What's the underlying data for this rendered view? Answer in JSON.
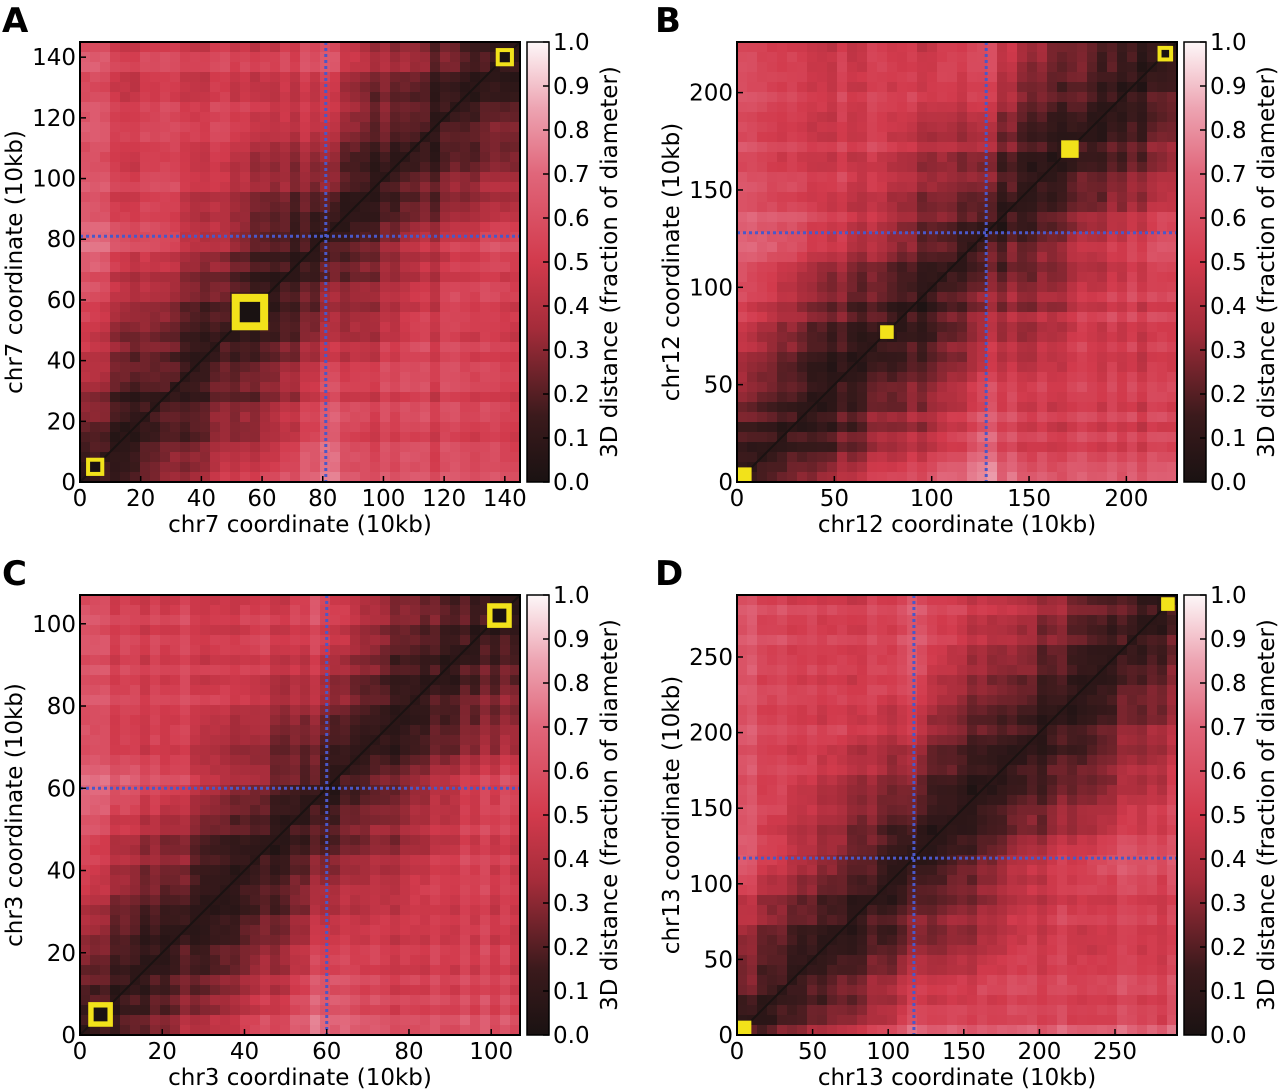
{
  "colors": {
    "low": "#1a1212",
    "mid": "#d23a4c",
    "high": "#fdf7f8",
    "crosshair": "#4a58c8",
    "marker": "#f2e21a"
  },
  "colorbar": {
    "label": "3D distance (fraction of diameter)",
    "ticks": [
      "0.0",
      "0.1",
      "0.2",
      "0.3",
      "0.4",
      "0.5",
      "0.6",
      "0.7",
      "0.8",
      "0.9",
      "1.0"
    ]
  },
  "chart_data": [
    {
      "type": "heatmap",
      "panel": "A",
      "xlabel": "chr7 coordinate (10kb)",
      "ylabel": "chr7 coordinate (10kb)",
      "xlim": [
        0,
        145
      ],
      "ylim": [
        0,
        145
      ],
      "ticks": [
        0,
        20,
        40,
        60,
        80,
        100,
        120,
        140
      ],
      "crosshair": 81,
      "markers": [
        {
          "x": 5,
          "y": 5,
          "size": 6,
          "style": "ring"
        },
        {
          "x": 56,
          "y": 56,
          "size": 12,
          "style": "ring"
        },
        {
          "x": 140,
          "y": 140,
          "size": 6,
          "style": "ring"
        }
      ]
    },
    {
      "type": "heatmap",
      "panel": "B",
      "xlabel": "chr12 coordinate (10kb)",
      "ylabel": "chr12 coordinate (10kb)",
      "xlim": [
        0,
        226
      ],
      "ylim": [
        0,
        226
      ],
      "ticks": [
        0,
        50,
        100,
        150,
        200
      ],
      "crosshair": 128,
      "markers": [
        {
          "x": 4,
          "y": 4,
          "size": 7,
          "style": "solid"
        },
        {
          "x": 77,
          "y": 77,
          "size": 7,
          "style": "solid"
        },
        {
          "x": 171,
          "y": 171,
          "size": 9,
          "style": "solid"
        },
        {
          "x": 220,
          "y": 220,
          "size": 8,
          "style": "ring"
        }
      ]
    },
    {
      "type": "heatmap",
      "panel": "C",
      "xlabel": "chr3 coordinate (10kb)",
      "ylabel": "chr3 coordinate (10kb)",
      "xlim": [
        0,
        107
      ],
      "ylim": [
        0,
        107
      ],
      "ticks": [
        0,
        20,
        40,
        60,
        80,
        100
      ],
      "crosshair": 60,
      "markers": [
        {
          "x": 5,
          "y": 5,
          "size": 6,
          "style": "ring"
        },
        {
          "x": 102,
          "y": 102,
          "size": 6,
          "style": "ring"
        }
      ]
    },
    {
      "type": "heatmap",
      "panel": "D",
      "xlabel": "chr13 coordinate (10kb)",
      "ylabel": "chr13 coordinate (10kb)",
      "xlim": [
        0,
        291
      ],
      "ylim": [
        0,
        291
      ],
      "ticks": [
        0,
        50,
        100,
        150,
        200,
        250
      ],
      "crosshair": 117,
      "markers": [
        {
          "x": 5,
          "y": 5,
          "size": 9,
          "style": "solid"
        },
        {
          "x": 285,
          "y": 285,
          "size": 9,
          "style": "solid"
        }
      ]
    }
  ]
}
